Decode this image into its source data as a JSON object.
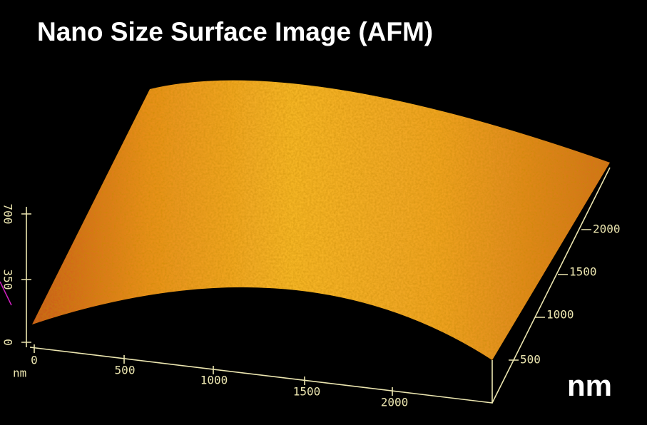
{
  "title": "Nano Size Surface Image (AFM)",
  "z_axis": {
    "ticks": [
      "0",
      "350",
      "700"
    ],
    "unit": "nm"
  },
  "x_axis": {
    "ticks": [
      "0",
      "500",
      "1000",
      "1500",
      "2000"
    ]
  },
  "y_axis": {
    "ticks": [
      "500",
      "1000",
      "1500",
      "2000"
    ]
  },
  "unit_label": "nm"
}
